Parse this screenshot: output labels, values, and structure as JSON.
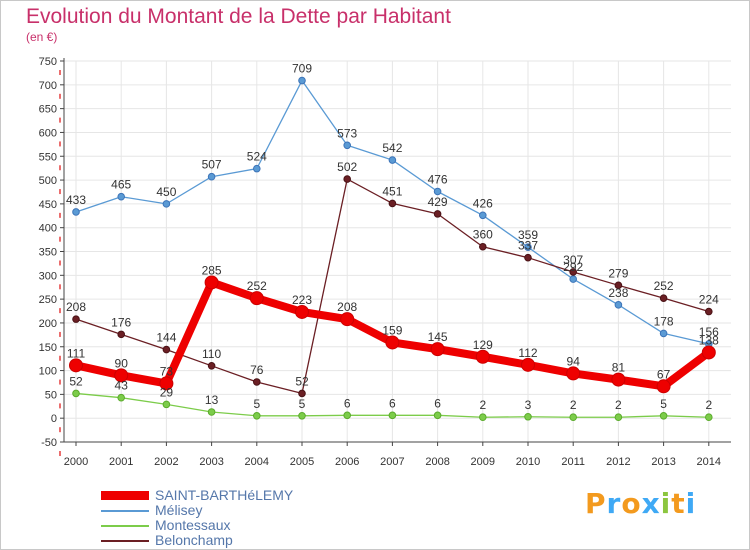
{
  "title": "Evolution du Montant de la Dette par Habitant",
  "subtitle": "(en €)",
  "logo_text": "Proxiti",
  "chart_data": {
    "type": "line",
    "title": "Evolution du Montant de la Dette par Habitant",
    "subtitle": "(en €)",
    "ylim": [
      -50,
      750
    ],
    "y_ticks": [
      -50,
      0,
      50,
      100,
      150,
      200,
      250,
      300,
      350,
      400,
      450,
      500,
      550,
      600,
      650,
      700,
      750
    ],
    "grid": true,
    "legend_position": "bottom-left",
    "categories": [
      "2000",
      "2001",
      "2002",
      "2003",
      "2004",
      "2005",
      "2006",
      "2007",
      "2008",
      "2009",
      "2010",
      "2011",
      "2012",
      "2013",
      "2014"
    ],
    "series": [
      {
        "name": "Mélisey",
        "color": "#5a9ad4",
        "values": [
          433,
          465,
          450,
          507,
          524,
          709,
          573,
          542,
          476,
          426,
          359,
          292,
          238,
          178,
          156
        ],
        "labels": [
          "433",
          "465",
          "450",
          "507",
          "524",
          "709",
          "573",
          "542",
          "476",
          "426",
          "359",
          "292",
          "238",
          "178",
          "156"
        ]
      },
      {
        "name": "Belonchamp",
        "color": "#6b1f24",
        "values": [
          208,
          176,
          144,
          110,
          76,
          52,
          502,
          451,
          429,
          360,
          337,
          307,
          279,
          252,
          224
        ],
        "labels": [
          "208",
          "176",
          "144",
          "110",
          "76",
          "52",
          "502",
          "451",
          "429",
          "360",
          "337",
          "307",
          "279",
          "252",
          "224"
        ]
      },
      {
        "name": "Montessaux",
        "color": "#7ccc4a",
        "values": [
          52,
          43,
          29,
          13,
          5,
          5,
          6,
          6,
          6,
          2,
          3,
          2,
          2,
          5,
          2
        ],
        "labels": [
          "52",
          "43",
          "29",
          "13",
          "5",
          "5",
          "6",
          "6",
          "6",
          "2",
          "3",
          "2",
          "2",
          "5",
          "2"
        ]
      },
      {
        "name": "SAINT-BARTHéLEMY",
        "color": "#ee0000",
        "values": [
          111,
          90,
          73,
          285,
          252,
          223,
          208,
          159,
          145,
          129,
          112,
          94,
          81,
          67,
          138
        ],
        "labels": [
          "111",
          "90",
          "73",
          "285",
          "252",
          "223",
          "208",
          "159",
          "145",
          "129",
          "112",
          "94",
          "81",
          "67",
          "138"
        ]
      }
    ],
    "legend": [
      {
        "name": "SAINT-BARTHéLEMY",
        "color": "#ee0000"
      },
      {
        "name": "Mélisey",
        "color": "#5a9ad4"
      },
      {
        "name": "Montessaux",
        "color": "#7ccc4a"
      },
      {
        "name": "Belonchamp",
        "color": "#6b1f24"
      }
    ]
  }
}
